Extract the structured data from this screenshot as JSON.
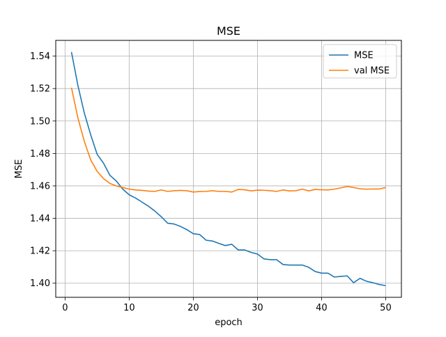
{
  "chart_data": {
    "type": "line",
    "title": "MSE",
    "xlabel": "epoch",
    "ylabel": "MSE",
    "xlim": [
      -1.45,
      52.45
    ],
    "ylim": [
      1.3913,
      1.5497
    ],
    "xticks": [
      0,
      10,
      20,
      30,
      40,
      50
    ],
    "yticks": [
      1.4,
      1.42,
      1.44,
      1.46,
      1.48,
      1.5,
      1.52,
      1.54
    ],
    "xtick_labels": [
      "0",
      "10",
      "20",
      "30",
      "40",
      "50"
    ],
    "ytick_labels": [
      "1.40",
      "1.42",
      "1.44",
      "1.46",
      "1.48",
      "1.50",
      "1.52",
      "1.54"
    ],
    "grid": true,
    "legend_position": "top-right",
    "x": [
      1,
      2,
      3,
      4,
      5,
      6,
      7,
      8,
      9,
      10,
      11,
      12,
      13,
      14,
      15,
      16,
      17,
      18,
      19,
      20,
      21,
      22,
      23,
      24,
      25,
      26,
      27,
      28,
      29,
      30,
      31,
      32,
      33,
      34,
      35,
      36,
      37,
      38,
      39,
      40,
      41,
      42,
      43,
      44,
      45,
      46,
      47,
      48,
      49,
      50
    ],
    "series": [
      {
        "name": "MSE",
        "color": "#1f77b4",
        "values": [
          1.5425,
          1.522,
          1.505,
          1.4915,
          1.4795,
          1.474,
          1.4665,
          1.463,
          1.458,
          1.4545,
          1.4525,
          1.45,
          1.4475,
          1.4445,
          1.441,
          1.437,
          1.4365,
          1.435,
          1.433,
          1.4305,
          1.43,
          1.4265,
          1.426,
          1.4245,
          1.4232,
          1.424,
          1.4205,
          1.4205,
          1.419,
          1.418,
          1.415,
          1.4145,
          1.4145,
          1.4115,
          1.4112,
          1.4112,
          1.4112,
          1.4098,
          1.4072,
          1.4062,
          1.4062,
          1.4038,
          1.4042,
          1.4045,
          1.4003,
          1.403,
          1.4012,
          1.4003,
          1.3992,
          1.3985
        ]
      },
      {
        "name": "val MSE",
        "color": "#ff7f0e",
        "values": [
          1.5205,
          1.502,
          1.4875,
          1.476,
          1.469,
          1.4645,
          1.4615,
          1.46,
          1.459,
          1.458,
          1.4575,
          1.4572,
          1.4568,
          1.4566,
          1.4575,
          1.4566,
          1.457,
          1.4572,
          1.457,
          1.4562,
          1.4565,
          1.4566,
          1.457,
          1.4566,
          1.4566,
          1.4562,
          1.4578,
          1.4576,
          1.4569,
          1.4574,
          1.4573,
          1.457,
          1.4566,
          1.4575,
          1.4569,
          1.457,
          1.458,
          1.4569,
          1.4578,
          1.4576,
          1.4575,
          1.458,
          1.4588,
          1.4596,
          1.459,
          1.4582,
          1.458,
          1.4581,
          1.4581,
          1.459
        ]
      }
    ]
  }
}
